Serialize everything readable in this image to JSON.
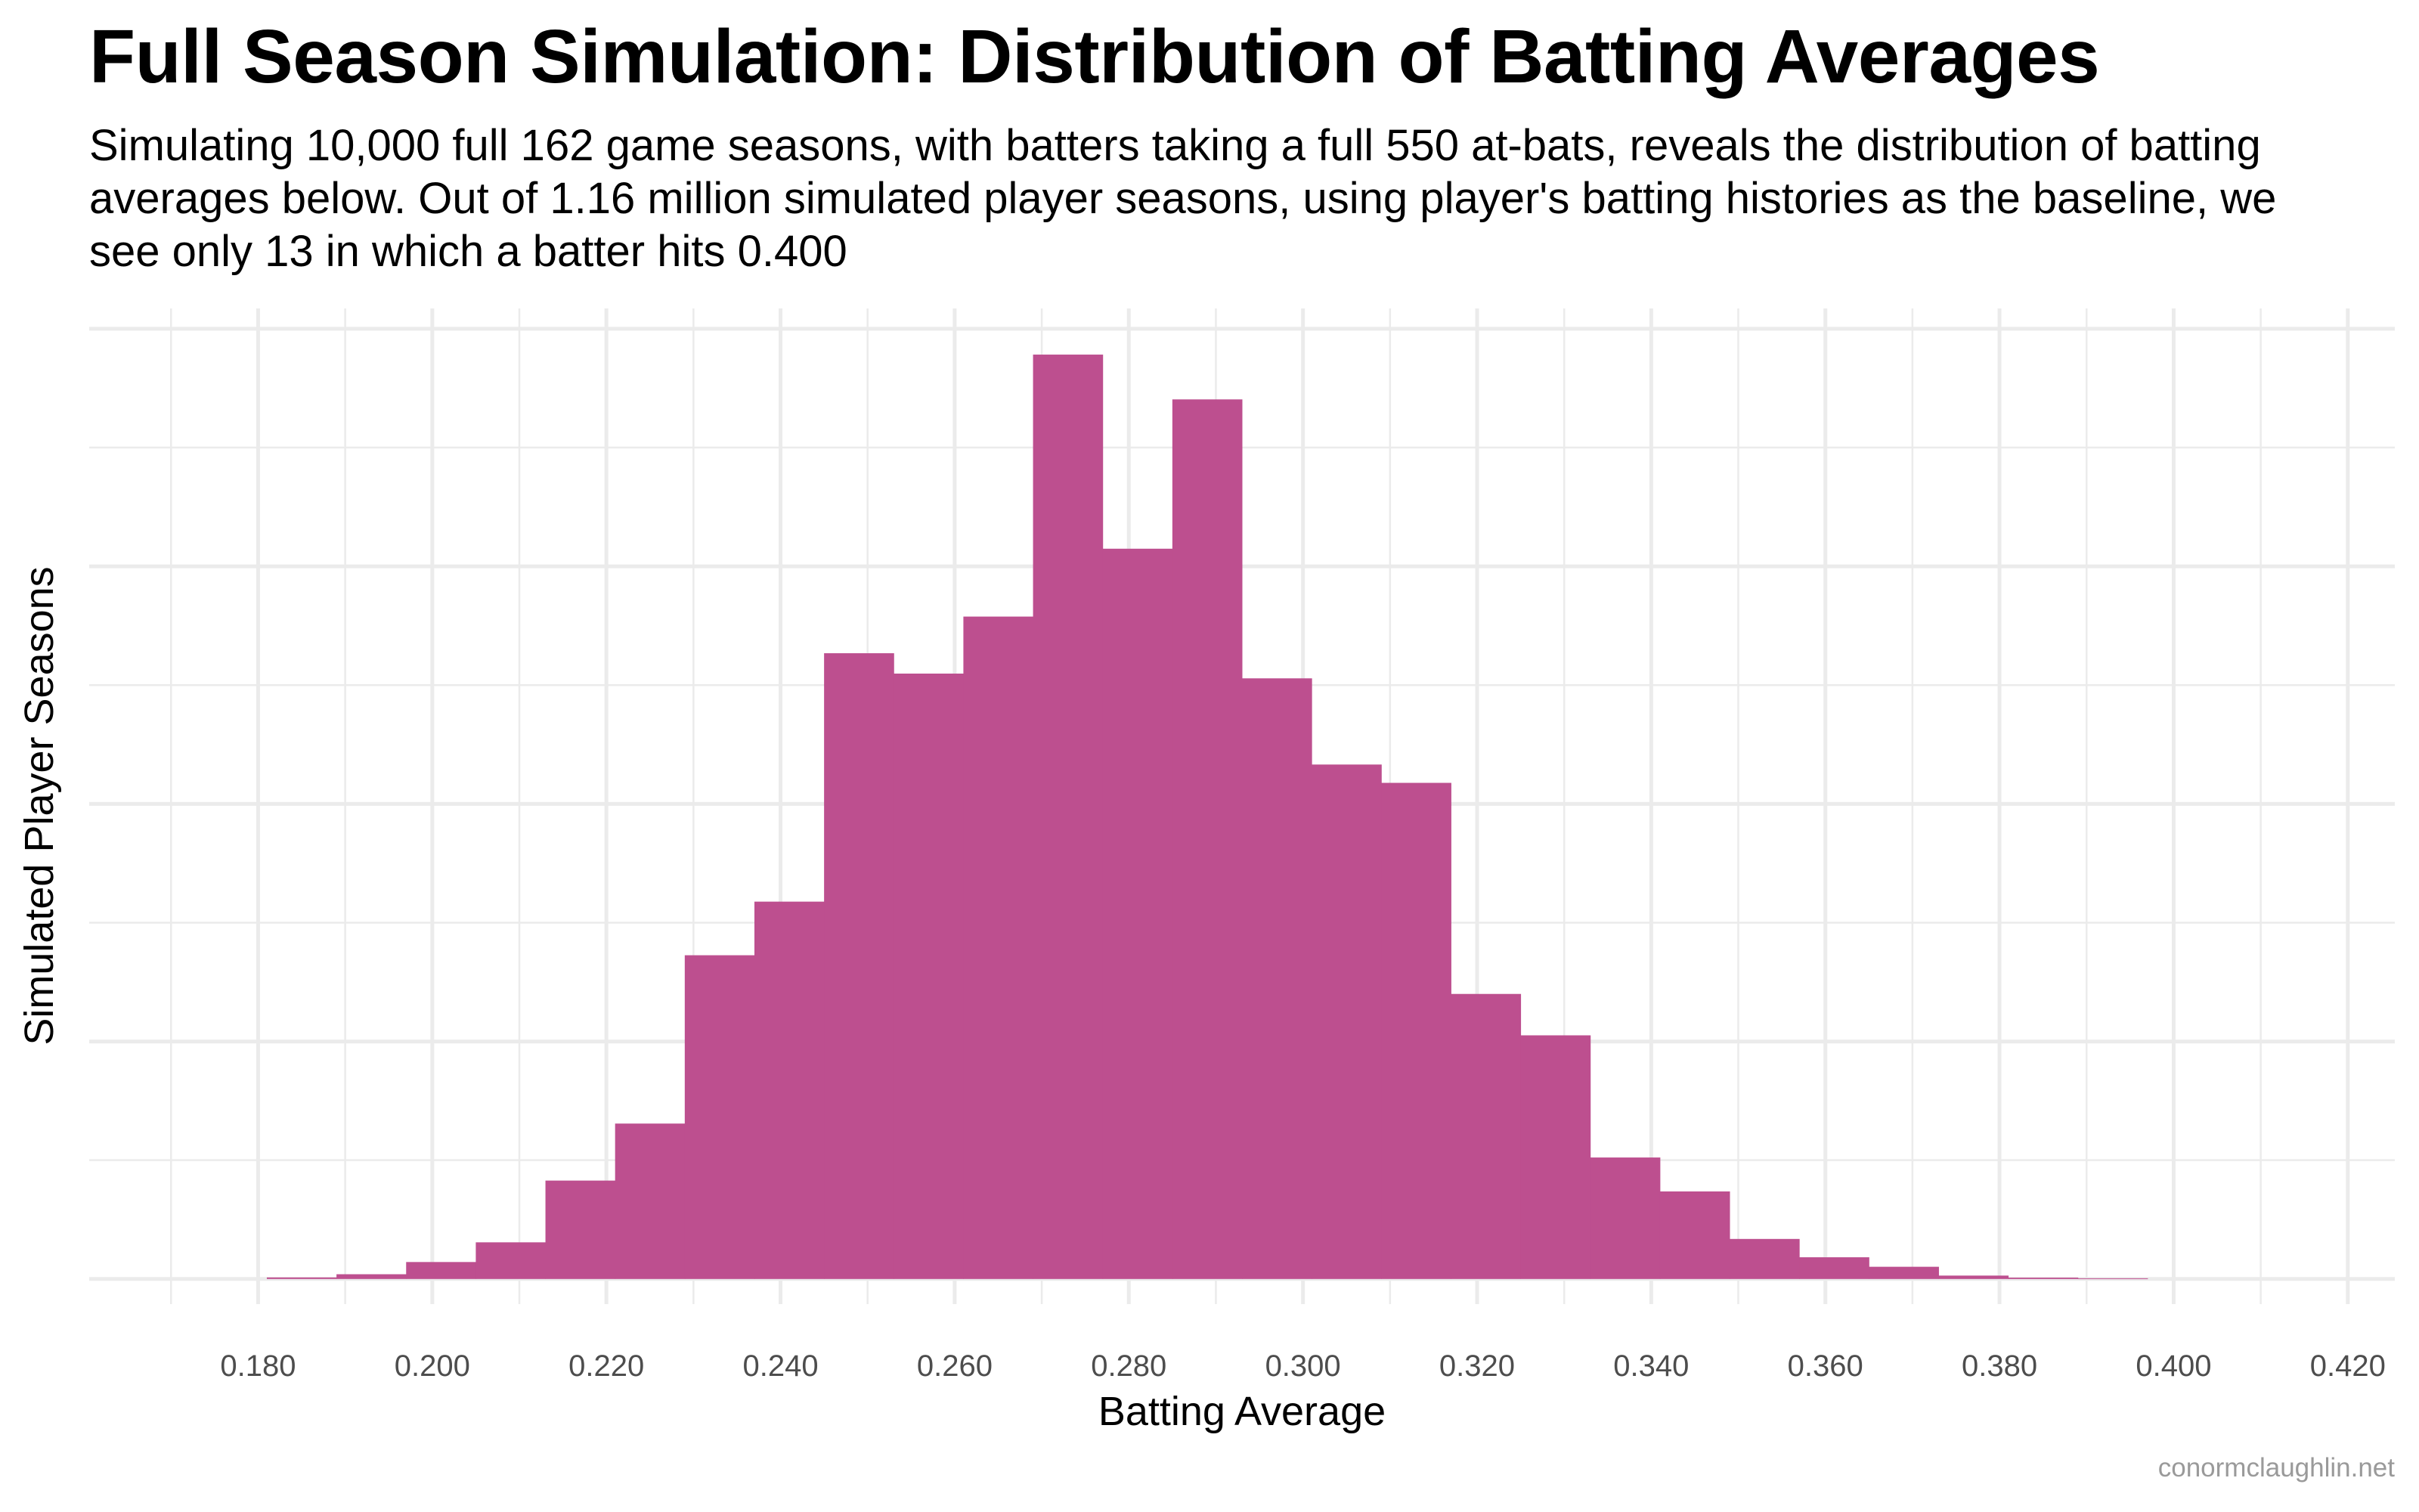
{
  "title": "Full Season Simulation: Distribution of Batting Averages",
  "subtitle": "Simulating 10,000 full 162 game seasons, with batters taking a full 550 at-bats, reveals the distribution of batting averages below. Out of 1.16 million simulated player seasons, using player's batting histories as the baseline, we see only 13 in which a batter hits 0.400",
  "watermark": "conormclaughlin.net",
  "colors": {
    "bar": "#BD4F8F",
    "grid": "#EBEBEB",
    "tick_text": "#4D4D4D"
  },
  "chart_data": {
    "type": "bar",
    "subtype": "histogram",
    "xlabel": "Batting Average",
    "ylabel": "Simulated Player Seasons",
    "xlim": [
      0.1606,
      0.4254
    ],
    "ylim": [
      -3700,
      143000
    ],
    "grid": true,
    "y_tick_labels_shown": false,
    "x_ticks": [
      "0.180",
      "0.200",
      "0.220",
      "0.240",
      "0.260",
      "0.280",
      "0.300",
      "0.320",
      "0.340",
      "0.360",
      "0.380",
      "0.400",
      "0.420"
    ],
    "bin_width": 0.008,
    "bin_start": 0.181,
    "values": [
      230,
      700,
      2500,
      5400,
      14500,
      22900,
      47700,
      55600,
      92200,
      89200,
      97600,
      136200,
      107600,
      129600,
      88500,
      75800,
      73100,
      42000,
      35900,
      17900,
      12900,
      5900,
      3200,
      1800,
      500,
      200,
      100
    ]
  }
}
